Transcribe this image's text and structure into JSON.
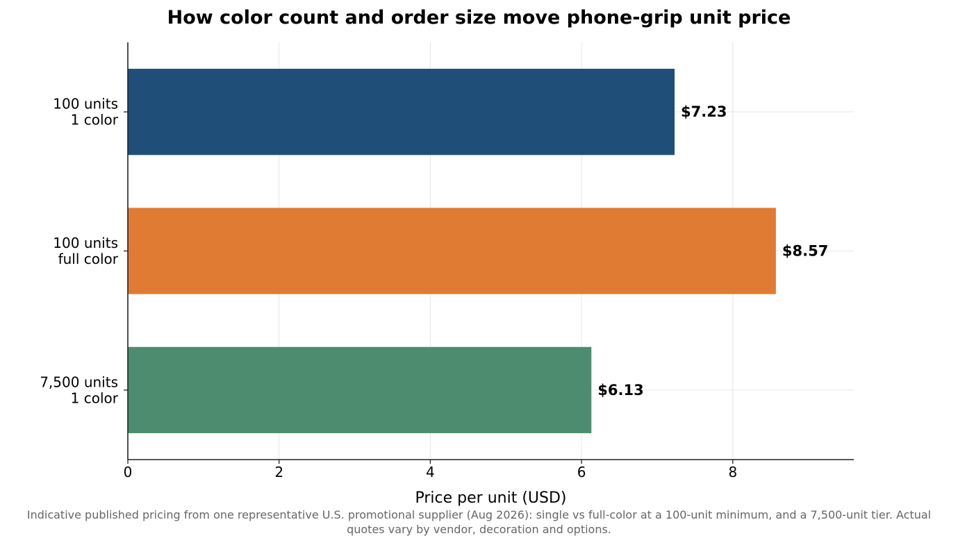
{
  "chart_data": {
    "type": "bar",
    "orientation": "horizontal",
    "title": "How color count and order size move phone-grip unit price",
    "xlabel": "Price per unit (USD)",
    "ylabel": "",
    "categories": [
      [
        "100 units",
        "1 color"
      ],
      [
        "100 units",
        "full color"
      ],
      [
        "7,500 units",
        "1 color"
      ]
    ],
    "values": [
      7.23,
      8.57,
      6.13
    ],
    "value_labels": [
      "$7.23",
      "$8.57",
      "$6.13"
    ],
    "colors": [
      "#1f4e79",
      "#e07b33",
      "#4d8c6e"
    ],
    "xlim": [
      0,
      9.6
    ],
    "xticks": [
      0,
      2,
      4,
      6,
      8
    ],
    "grid": true,
    "legend": "none"
  },
  "caption": "Indicative published pricing from one representative U.S. promotional supplier (Aug 2026): single vs full-color at a 100-unit minimum, and a 7,500-unit tier. Actual quotes vary by vendor, decoration and options."
}
